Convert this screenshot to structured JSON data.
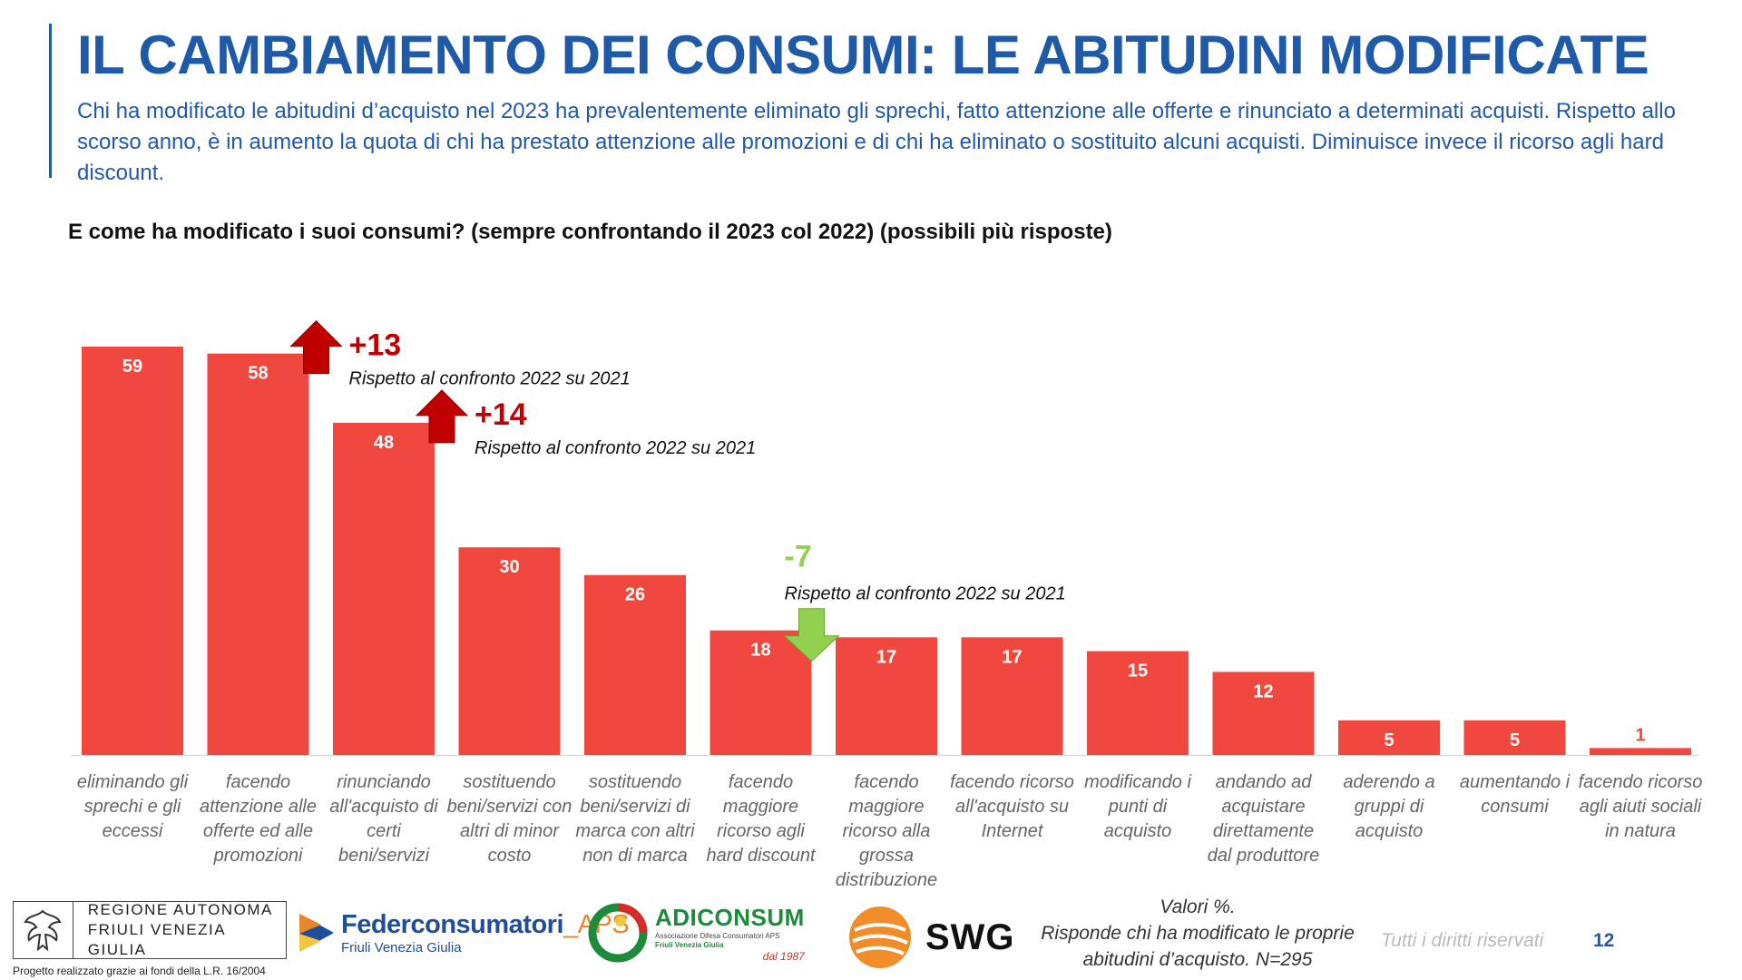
{
  "header": {
    "title": "IL CAMBIAMENTO DEI CONSUMI: LE ABITUDINI MODIFICATE",
    "subtitle": "Chi ha modificato le abitudini d’acquisto nel 2023 ha prevalentemente eliminato gli sprechi, fatto attenzione alle offerte e rinunciato a determinati acquisti. Rispetto allo scorso anno, è in aumento la quota di chi ha prestato attenzione alle promozioni e di chi ha eliminato o sostituito alcuni acquisti. Diminuisce invece il ricorso agli hard discount.",
    "question": "E come ha modificato i suoi consumi? (sempre confrontando il 2023 col 2022) (possibili più risposte)"
  },
  "chart_data": {
    "type": "bar",
    "title": "",
    "xlabel": "",
    "ylabel": "",
    "ylim": [
      0,
      59
    ],
    "grid": false,
    "legend": "none",
    "categories": [
      [
        "eliminando gli",
        "sprechi e gli",
        "eccessi"
      ],
      [
        "facendo",
        "attenzione alle",
        "offerte ed alle",
        "promozioni"
      ],
      [
        "rinunciando",
        "all'acquisto di",
        "certi",
        "beni/servizi"
      ],
      [
        "sostituendo",
        "beni/servizi con",
        "altri di minor",
        "costo"
      ],
      [
        "sostituendo",
        "beni/servizi di",
        "marca con altri",
        "non di marca"
      ],
      [
        "facendo",
        "maggiore",
        "ricorso agli",
        "hard discount"
      ],
      [
        "facendo",
        "maggiore",
        "ricorso alla",
        "grossa",
        "distribuzione"
      ],
      [
        "facendo ricorso",
        "all'acquisto su",
        "Internet"
      ],
      [
        "modificando i",
        "punti di",
        "acquisto"
      ],
      [
        "andando ad",
        "acquistare",
        "direttamente",
        "dal produttore"
      ],
      [
        "aderendo a",
        "gruppi di",
        "acquisto"
      ],
      [
        "aumentando i",
        "consumi"
      ],
      [
        "facendo ricorso",
        "agli aiuti sociali",
        "in natura"
      ]
    ],
    "values": [
      59,
      58,
      48,
      30,
      26,
      18,
      17,
      17,
      15,
      12,
      5,
      5,
      1
    ],
    "bar_color": "#f0483e",
    "annotations": [
      {
        "bar_index": 1,
        "value": "+13",
        "note": "Rispetto al confronto 2022 su 2021",
        "direction": "up",
        "color": "#c00000"
      },
      {
        "bar_index": 2,
        "value": "+14",
        "note": "Rispetto al confronto 2022 su 2021",
        "direction": "up",
        "color": "#c00000"
      },
      {
        "bar_index": 5,
        "value": "-7",
        "note": "Rispetto al confronto 2022 su 2021",
        "direction": "down",
        "color": "#92d050"
      }
    ]
  },
  "footer": {
    "regione_line1": "REGIONE AUTONOMA",
    "regione_line2": "FRIULI VENEZIA GIULIA",
    "regione_note": "Progetto realizzato grazie ai fondi della L.R. 16/2004",
    "feder_name": "Federconsumatori",
    "feder_suffix": "_APS",
    "feder_sub": "Friuli Venezia Giulia",
    "adiconsum_name": "ADICONSUM",
    "adiconsum_sub1": "Associazione Difesa Consumatori APS",
    "adiconsum_sub2": "Friuli Venezia Giulia",
    "adiconsum_since": "dal 1987",
    "swg_name": "SWG",
    "footnote_line1": "Valori %.",
    "footnote_line2": "Risponde chi ha modificato le proprie",
    "footnote_line3": "abitudini d’acquisto. N=295",
    "rights": "Tutti i diritti riservati",
    "page_number": "12"
  }
}
